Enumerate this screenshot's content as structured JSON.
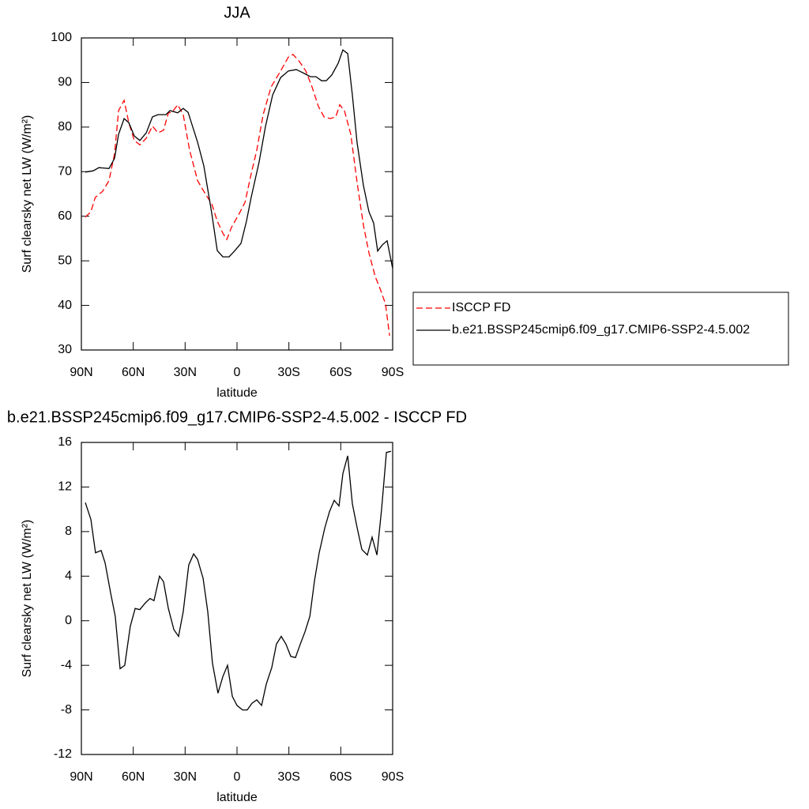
{
  "chart_data": [
    {
      "type": "line",
      "title": "JJA",
      "xlabel": "latitude",
      "ylabel": "Surf clearsky net LW (W/m²)",
      "xlim": [
        90,
        -90
      ],
      "xticks": [
        {
          "value": 90,
          "label": "90N"
        },
        {
          "value": 60,
          "label": "60N"
        },
        {
          "value": 30,
          "label": "30N"
        },
        0,
        {
          "value": -30,
          "label": "30S"
        },
        {
          "value": -60,
          "label": "60S"
        },
        {
          "value": -90,
          "label": "90S"
        }
      ],
      "ylim": [
        30,
        100
      ],
      "yticks": [
        30,
        40,
        50,
        60,
        70,
        80,
        90,
        100
      ],
      "legend": "right",
      "series": [
        {
          "name": "ISCCP FD",
          "color": "#ff0000",
          "dash": true,
          "x": [
            87.7,
            84.5,
            82,
            77.7,
            74,
            70.8,
            68.5,
            65.3,
            62.6,
            59.4,
            56.2,
            52.5,
            48.9,
            45.7,
            42.5,
            39.7,
            37.5,
            34.3,
            31.1,
            27.4,
            22.8,
            18.3,
            14.6,
            11.4,
            8.2,
            5.9,
            3.2,
            -1.4,
            -4.6,
            -8.2,
            -11.4,
            -15.1,
            -19.7,
            -25.2,
            -29.7,
            -32.4,
            -36.1,
            -39.8,
            -43.4,
            -47.1,
            -50.3,
            -53.9,
            -57.1,
            -59.4,
            -62.1,
            -65.8,
            -69.4,
            -73.1,
            -76.3,
            -79.9,
            -82.7,
            -85.9,
            -88.2
          ],
          "values": [
            59.8,
            61,
            64.2,
            65.6,
            68,
            74,
            83.7,
            86,
            81,
            77,
            76,
            77.5,
            80.2,
            78.7,
            79.3,
            83.2,
            83.3,
            85,
            82.8,
            74.8,
            68,
            65,
            62.8,
            58.9,
            56.2,
            54.8,
            57.5,
            60.7,
            63.1,
            69.5,
            74.8,
            82.8,
            89,
            92.6,
            95.7,
            96.3,
            94.7,
            92.6,
            89,
            84.6,
            82.3,
            81.9,
            82.3,
            85,
            83.7,
            78.4,
            67.7,
            58,
            51.8,
            46.5,
            43.8,
            40.3,
            33.2
          ]
        },
        {
          "name": "b.e21.BSSP245cmip6.f09_g17.CMIP6-SSP2-4.5.002",
          "color": "#000000",
          "dash": false,
          "x": [
            87.7,
            83.1,
            79.9,
            74,
            70.8,
            68.5,
            65.3,
            62.6,
            59.4,
            56.2,
            52.5,
            48.9,
            45.7,
            41.1,
            38.8,
            34.3,
            31.1,
            28.3,
            22.8,
            19.2,
            14.6,
            11.4,
            8.2,
            4.6,
            1.4,
            -2.3,
            -5.5,
            -8.2,
            -12.8,
            -16.5,
            -20.6,
            -25.2,
            -29.7,
            -34.3,
            -38,
            -42.5,
            -45.7,
            -48.9,
            -51.6,
            -54.8,
            -58.5,
            -61.2,
            -64,
            -66.7,
            -69.4,
            -73.1,
            -76.3,
            -79,
            -81.3,
            -84.1,
            -86.8,
            -90
          ],
          "values": [
            69.9,
            70.2,
            70.9,
            70.7,
            73,
            78.4,
            81.9,
            81,
            78,
            77,
            78.7,
            82.3,
            82.8,
            82.8,
            83.7,
            83.2,
            84.2,
            83.3,
            76.6,
            71.3,
            60.7,
            52.3,
            50.9,
            50.9,
            52.2,
            53.9,
            58.9,
            64.2,
            72.2,
            80.2,
            87.2,
            91.1,
            92.6,
            92.9,
            92.2,
            91.3,
            91.3,
            90.4,
            90.4,
            91.7,
            94.3,
            97.3,
            96.5,
            87.2,
            76.6,
            66.9,
            61,
            58.5,
            52.2,
            53.6,
            54.5,
            48.3
          ]
        }
      ]
    },
    {
      "type": "line",
      "title": "b.e21.BSSP245cmip6.f09_g17.CMIP6-SSP2-4.5.002 - ISCCP FD",
      "xlabel": "latitude",
      "ylabel": "Surf clearsky net LW (W/m²)",
      "xlim": [
        90,
        -90
      ],
      "xticks": [
        {
          "value": 90,
          "label": "90N"
        },
        {
          "value": 60,
          "label": "60N"
        },
        {
          "value": 30,
          "label": "30N"
        },
        0,
        {
          "value": -30,
          "label": "30S"
        },
        {
          "value": -60,
          "label": "60S"
        },
        {
          "value": -90,
          "label": "90S"
        }
      ],
      "ylim": [
        -12,
        16
      ],
      "yticks": [
        -12,
        -8,
        -4,
        0,
        4,
        8,
        12,
        16
      ],
      "color": "#000000",
      "x": [
        87.7,
        84.5,
        81.8,
        78.6,
        76.3,
        73.1,
        70.4,
        67.6,
        64.9,
        61.7,
        58.9,
        56.2,
        53,
        50.3,
        48,
        44.8,
        42.5,
        39.7,
        36.5,
        33.8,
        31.1,
        27.9,
        25.1,
        22.8,
        19.6,
        16.9,
        14.2,
        11,
        8.2,
        5.5,
        2.7,
        0,
        -3.2,
        -5.9,
        -8.7,
        -11.4,
        -14.2,
        -16.9,
        -20.1,
        -22.8,
        -25.6,
        -28.3,
        -31.1,
        -33.8,
        -36.6,
        -39.3,
        -42.1,
        -44.8,
        -47.5,
        -50.7,
        -53.5,
        -56.2,
        -59,
        -61.2,
        -64,
        -66.7,
        -69.4,
        -72.2,
        -75.4,
        -78.1,
        -80.9,
        -83.6,
        -86.4,
        -89.1
      ],
      "values": [
        10.6,
        9.1,
        6.1,
        6.3,
        5.2,
        2.5,
        0.4,
        -4.3,
        -4,
        -0.5,
        1.1,
        1,
        1.6,
        2,
        1.8,
        4,
        3.5,
        1.1,
        -0.8,
        -1.4,
        0.8,
        5,
        6,
        5.5,
        3.8,
        0.8,
        -3.8,
        -6.5,
        -5,
        -4,
        -6.8,
        -7.6,
        -8,
        -8,
        -7.4,
        -7.1,
        -7.6,
        -5.7,
        -4.2,
        -2.1,
        -1.4,
        -2.1,
        -3.2,
        -3.3,
        -2.1,
        -1,
        0.4,
        3.6,
        6.1,
        8.3,
        9.8,
        10.8,
        10.3,
        13.2,
        14.8,
        10.5,
        8.4,
        6.4,
        5.9,
        7.5,
        5.9,
        10,
        15.1,
        15.2
      ]
    }
  ]
}
